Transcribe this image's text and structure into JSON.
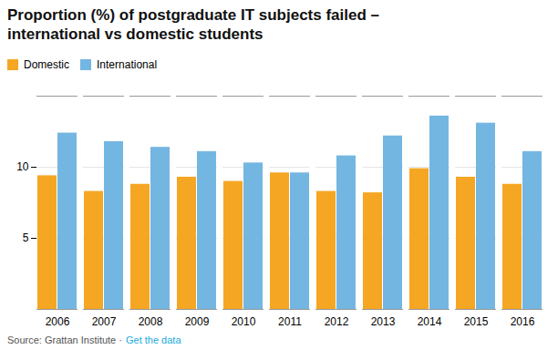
{
  "chart_data": {
    "type": "bar",
    "title": "Proportion (%) of postgraduate IT subjects failed –",
    "subtitle": "international vs domestic students",
    "categories": [
      "2006",
      "2007",
      "2008",
      "2009",
      "2010",
      "2011",
      "2012",
      "2013",
      "2014",
      "2015",
      "2016"
    ],
    "series": [
      {
        "name": "Domestic",
        "color": "#F5A623",
        "values": [
          9.4,
          8.3,
          8.8,
          9.3,
          9.0,
          9.6,
          8.3,
          8.2,
          9.9,
          9.3,
          8.8
        ]
      },
      {
        "name": "International",
        "color": "#74B6E2",
        "values": [
          12.4,
          11.8,
          11.4,
          11.1,
          10.3,
          9.6,
          10.8,
          12.2,
          13.6,
          13.1,
          11.1
        ]
      }
    ],
    "ylim": [
      0,
      15
    ],
    "yticks": [
      5,
      10
    ],
    "grid": true,
    "legend": "top-left",
    "annotations": [
      {
        "text": "Source: Grattan Institute ·",
        "color": "#555555"
      },
      {
        "text": "Get the data",
        "color": "#1aabdb"
      }
    ]
  }
}
